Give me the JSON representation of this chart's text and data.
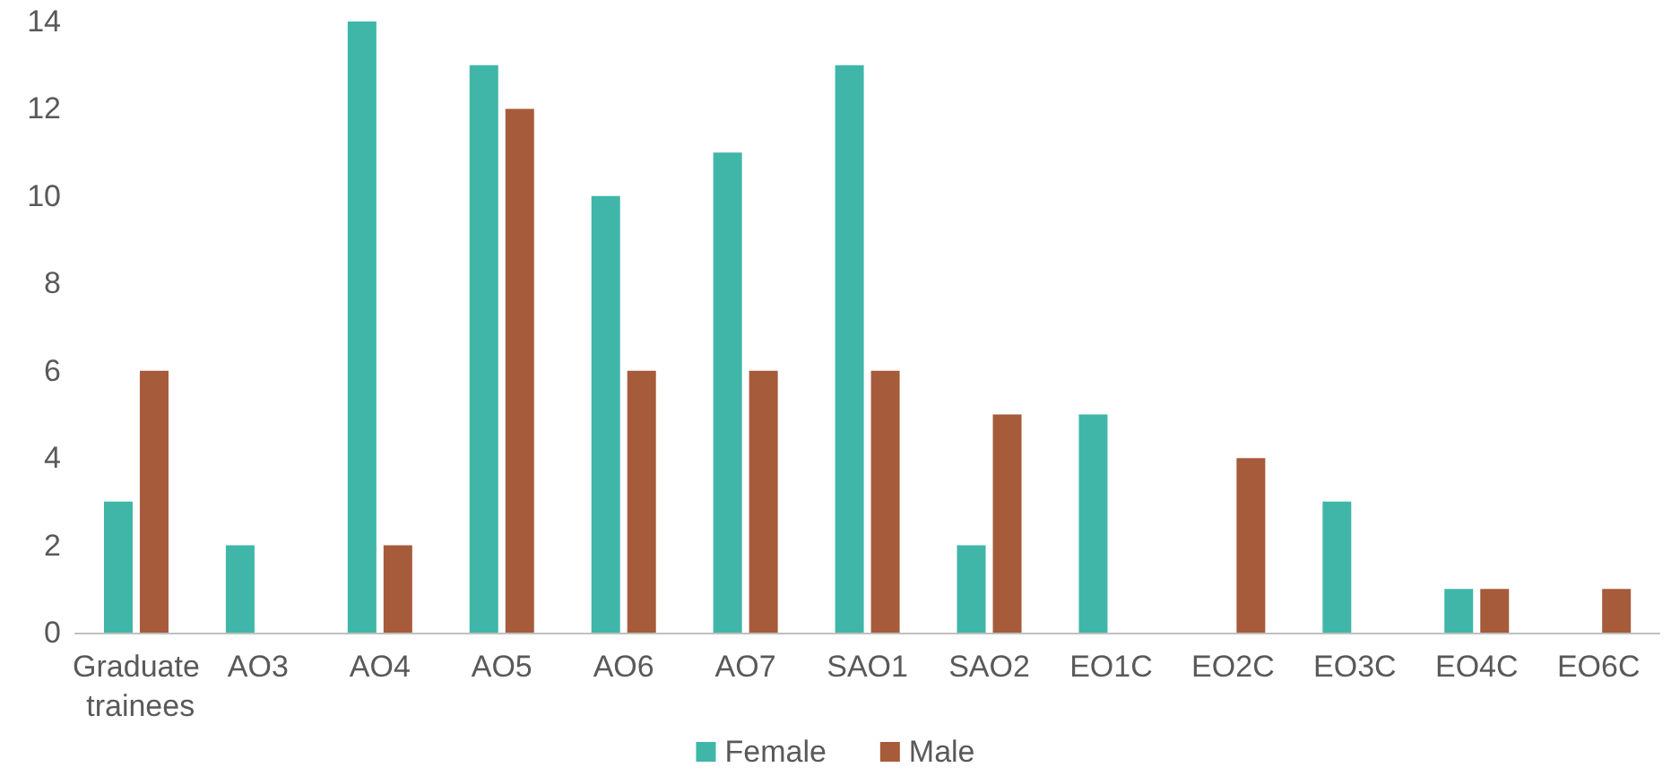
{
  "chart_data": {
    "type": "bar",
    "categories": [
      "Graduate trainees",
      "AO3",
      "AO4",
      "AO5",
      "AO6",
      "AO7",
      "SAO1",
      "SAO2",
      "EO1C",
      "EO2C",
      "EO3C",
      "EO4C",
      "EO6C"
    ],
    "series": [
      {
        "name": "Female",
        "color": "#3fb6a8",
        "values": [
          3,
          2,
          14,
          13,
          10,
          11,
          13,
          2,
          5,
          0,
          3,
          1,
          0
        ]
      },
      {
        "name": "Male",
        "color": "#a65b3b",
        "values": [
          6,
          0,
          2,
          12,
          6,
          6,
          6,
          5,
          0,
          4,
          0,
          1,
          1
        ]
      }
    ],
    "ylim": [
      0,
      14
    ],
    "yticks": [
      0,
      2,
      4,
      6,
      8,
      10,
      12,
      14
    ],
    "grid": false,
    "legend": "bottom"
  }
}
